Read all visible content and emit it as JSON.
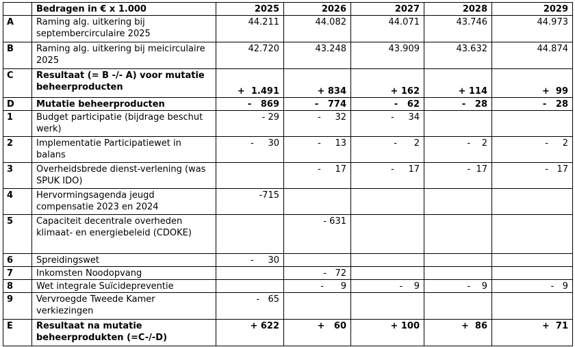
{
  "table": {
    "header": {
      "code": "",
      "label": "Bedragen in € x 1.000",
      "years": [
        "2025",
        "2026",
        "2027",
        "2028",
        "2029"
      ]
    },
    "rows": [
      {
        "code": "A",
        "label": "Raming alg. uitkering bij septembercirculaire 2025",
        "values": [
          "44.211",
          "44.082",
          "44.071",
          "43.746",
          "44.973"
        ],
        "bold": false
      },
      {
        "code": "B",
        "label": "Raming alg. uitkering bij meicirculaire 2025",
        "values": [
          "42.720",
          "43.248",
          "43.909",
          "43.632",
          "44.874"
        ],
        "bold": false
      },
      {
        "code": "C",
        "label": "Resultaat (= B -/- A) voor mutatie beheerproducten",
        "values": [
          "+  1.491",
          "+ 834",
          "+ 162",
          "+ 114",
          "+  99"
        ],
        "bold": true
      },
      {
        "code": "D",
        "label": "Mutatie beheerproducten",
        "values": [
          "-   869",
          "-   774",
          "-   62",
          "-   28",
          "-   28"
        ],
        "bold": true
      },
      {
        "code": "1",
        "label": "Budget participatie (bijdrage beschut werk)",
        "values": [
          "- 29",
          "-     32",
          "-     34",
          "",
          ""
        ],
        "bold": false
      },
      {
        "code": "2",
        "label": "Implementatie Participatiewet in balans",
        "values": [
          "-     30",
          "-     13",
          "-      2",
          "-    2",
          "-     2"
        ],
        "bold": false
      },
      {
        "code": "3",
        "label": "Overheidsbrede dienst-verlening (was SPUK IDO)",
        "values": [
          "",
          "-     17",
          "-     17",
          "-  17",
          "-   17"
        ],
        "bold": false
      },
      {
        "code": "4",
        "label": "Hervormingsagenda jeugd compensatie 2023 en 2024",
        "values": [
          "-715",
          "",
          "",
          "",
          ""
        ],
        "bold": false
      },
      {
        "code": "5",
        "label": "Capaciteit decentrale overheden klimaat- en energiebeleid (CDOKE)",
        "values": [
          "",
          "- 631",
          "",
          "",
          ""
        ],
        "bold": false
      },
      {
        "code": "6",
        "label": "Spreidingswet",
        "values": [
          "-     30",
          "",
          "",
          "",
          ""
        ],
        "bold": false
      },
      {
        "code": "7",
        "label": "Inkomsten Noodopvang",
        "values": [
          "",
          "-   72",
          "",
          "",
          ""
        ],
        "bold": false
      },
      {
        "code": "8",
        "label": "Wet integrale Suïcidepreventie",
        "values": [
          "",
          "-      9",
          "-    9",
          "-    9",
          "-   9"
        ],
        "bold": false
      },
      {
        "code": "9",
        "label": "Vervroegde Tweede Kamer verkiezingen",
        "values": [
          "-   65",
          "",
          "",
          "",
          ""
        ],
        "bold": false
      },
      {
        "code": "E",
        "label": "Resultaat na mutatie beheerprodukten (=C-/-D)",
        "values": [
          "+ 622",
          "+   60",
          "+ 100",
          "+  86",
          "+  71"
        ],
        "bold": true
      }
    ]
  }
}
